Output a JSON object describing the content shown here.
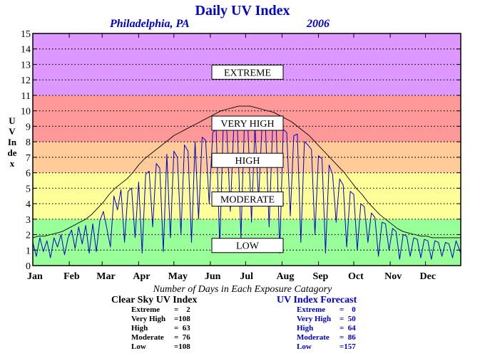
{
  "title": "Daily UV Index",
  "location": "Philadelphia, PA",
  "year": "2006",
  "ylabel": "UV Index",
  "footer_title": "Number of Days in Each Exposure Catagory",
  "bands": [
    {
      "label": "LOW",
      "from": 0,
      "to": 3,
      "color": "#99ff99"
    },
    {
      "label": "MODERATE",
      "from": 3,
      "to": 6,
      "color": "#ffff99"
    },
    {
      "label": "HIGH",
      "from": 6,
      "to": 8,
      "color": "#ffcc99"
    },
    {
      "label": "VERY HIGH",
      "from": 8,
      "to": 11,
      "color": "#ff9999"
    },
    {
      "label": "EXTREME",
      "from": 11,
      "to": 15,
      "color": "#dd99ff"
    }
  ],
  "clear_sky": {
    "heading": "Clear Sky UV Index",
    "rows": [
      {
        "label": "Extreme",
        "value": "=    2"
      },
      {
        "label": "Very High",
        "value": "=108"
      },
      {
        "label": "High",
        "value": "=  63"
      },
      {
        "label": "Moderate",
        "value": "=  76"
      },
      {
        "label": "Low",
        "value": "=108"
      }
    ]
  },
  "forecast": {
    "heading": "UV Index Forecast",
    "rows": [
      {
        "label": "Extreme",
        "value": "=    0"
      },
      {
        "label": "Very High",
        "value": "=  50"
      },
      {
        "label": "High",
        "value": "=  64"
      },
      {
        "label": "Moderate",
        "value": "=  86"
      },
      {
        "label": "Low",
        "value": "=157"
      }
    ]
  },
  "colors": {
    "title": "#0000cc",
    "clear_sky_line": "#000000",
    "forecast_line": "#0000cc"
  },
  "chart_data": {
    "type": "line",
    "title": "Daily UV Index",
    "ylabel": "UV Index",
    "x_unit": "day of year",
    "xlim": [
      1,
      365
    ],
    "ylim": [
      0,
      15
    ],
    "yticks": [
      0,
      1,
      2,
      3,
      4,
      5,
      6,
      7,
      8,
      9,
      10,
      11,
      12,
      13,
      14,
      15
    ],
    "xtick_labels": [
      "Jan",
      "Feb",
      "Mar",
      "Apr",
      "May",
      "Jun",
      "Jul",
      "Aug",
      "Sep",
      "Oct",
      "Nov",
      "Dec"
    ],
    "xtick_days": [
      1,
      32,
      60,
      91,
      121,
      152,
      182,
      213,
      244,
      274,
      305,
      335
    ],
    "grid": true,
    "legend": "none",
    "series": [
      {
        "name": "Clear Sky UV Index",
        "color": "#000000",
        "x": [
          1,
          6,
          11,
          16,
          21,
          26,
          31,
          36,
          41,
          46,
          51,
          56,
          61,
          66,
          71,
          76,
          81,
          86,
          91,
          96,
          101,
          106,
          111,
          116,
          121,
          126,
          131,
          136,
          141,
          146,
          151,
          156,
          161,
          166,
          171,
          176,
          181,
          186,
          191,
          196,
          201,
          206,
          211,
          216,
          221,
          226,
          231,
          236,
          241,
          246,
          251,
          256,
          261,
          266,
          271,
          276,
          281,
          286,
          291,
          296,
          301,
          306,
          311,
          316,
          321,
          326,
          331,
          336,
          341,
          346,
          351,
          356,
          361,
          365
        ],
        "y": [
          1.8,
          1.9,
          1.9,
          2.0,
          2.1,
          2.2,
          2.4,
          2.6,
          2.8,
          3.0,
          3.3,
          3.7,
          4.1,
          4.6,
          5.0,
          5.3,
          5.6,
          6.0,
          6.5,
          6.9,
          7.2,
          7.5,
          7.8,
          8.1,
          8.4,
          8.6,
          8.8,
          9.0,
          9.2,
          9.4,
          9.6,
          9.8,
          10.0,
          10.1,
          10.2,
          10.3,
          10.3,
          10.3,
          10.2,
          10.1,
          10.0,
          9.9,
          9.7,
          9.5,
          9.3,
          9.0,
          8.7,
          8.4,
          8.0,
          7.6,
          7.2,
          6.8,
          6.4,
          6.0,
          5.5,
          5.0,
          4.6,
          4.1,
          3.7,
          3.3,
          3.0,
          2.7,
          2.4,
          2.2,
          2.1,
          2.0,
          1.9,
          1.9,
          1.8,
          1.8,
          1.8,
          1.8,
          1.8,
          1.8
        ]
      },
      {
        "name": "UV Index Forecast",
        "color": "#0000cc",
        "x": [
          1,
          4,
          7,
          10,
          13,
          16,
          19,
          22,
          25,
          28,
          31,
          34,
          37,
          40,
          43,
          46,
          49,
          52,
          55,
          58,
          61,
          64,
          67,
          70,
          73,
          76,
          79,
          82,
          85,
          88,
          91,
          94,
          97,
          100,
          103,
          106,
          109,
          112,
          115,
          118,
          121,
          124,
          127,
          130,
          133,
          136,
          139,
          142,
          145,
          148,
          151,
          154,
          157,
          160,
          163,
          166,
          169,
          172,
          175,
          178,
          181,
          184,
          187,
          190,
          193,
          196,
          199,
          202,
          205,
          208,
          211,
          214,
          217,
          220,
          223,
          226,
          229,
          232,
          235,
          238,
          241,
          244,
          247,
          250,
          253,
          256,
          259,
          262,
          265,
          268,
          271,
          274,
          277,
          280,
          283,
          286,
          289,
          292,
          295,
          298,
          301,
          304,
          307,
          310,
          313,
          316,
          319,
          322,
          325,
          328,
          331,
          334,
          337,
          340,
          343,
          346,
          349,
          352,
          355,
          358,
          361,
          365
        ],
        "y": [
          1.5,
          0.6,
          1.8,
          0.9,
          1.6,
          0.5,
          1.8,
          1.2,
          2.0,
          0.7,
          1.8,
          2.3,
          1.1,
          2.5,
          1.4,
          2.6,
          0.8,
          2.7,
          0.9,
          2.9,
          3.5,
          2.4,
          1.2,
          4.5,
          3.6,
          4.9,
          1.5,
          4.8,
          5.0,
          1.8,
          5.4,
          0.8,
          5.9,
          6.1,
          2.5,
          6.6,
          6.3,
          0.9,
          7.2,
          1.8,
          7.4,
          7.0,
          2.0,
          7.8,
          7.4,
          1.5,
          8.0,
          3.0,
          8.3,
          8.1,
          4.0,
          8.6,
          8.8,
          1.2,
          9.0,
          8.7,
          3.5,
          9.1,
          9.0,
          1.8,
          9.2,
          8.9,
          2.8,
          9.0,
          4.2,
          9.1,
          8.7,
          2.5,
          9.0,
          9.1,
          0.8,
          8.8,
          8.6,
          3.2,
          8.4,
          8.5,
          1.5,
          8.0,
          7.8,
          7.5,
          2.0,
          7.1,
          6.9,
          0.8,
          6.5,
          5.9,
          2.8,
          5.6,
          5.2,
          1.2,
          4.8,
          4.6,
          1.0,
          4.0,
          3.8,
          1.5,
          3.4,
          3.1,
          0.6,
          2.8,
          2.7,
          1.0,
          2.4,
          2.2,
          0.4,
          2.0,
          1.9,
          0.6,
          1.8,
          1.7,
          0.5,
          1.7,
          1.6,
          0.4,
          1.6,
          1.5,
          0.6,
          1.5,
          1.4,
          0.5,
          1.6,
          0.8
        ]
      }
    ]
  }
}
